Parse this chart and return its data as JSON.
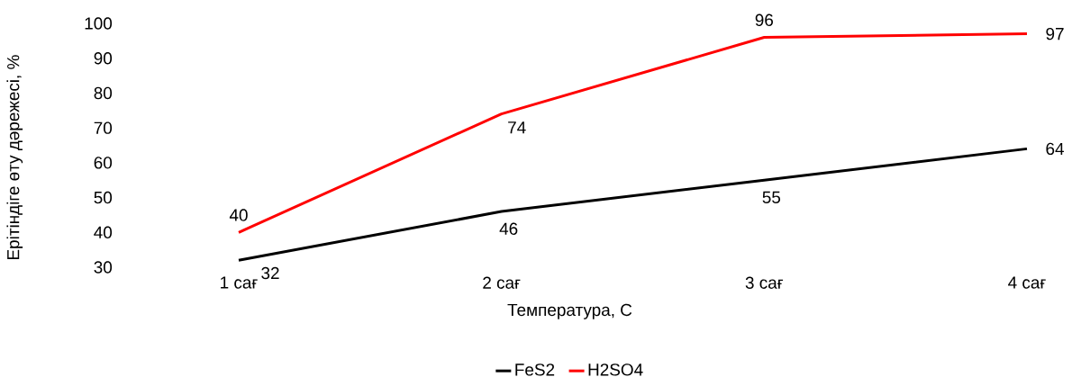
{
  "chart_data": {
    "type": "line",
    "xlabel": "Температура, С",
    "ylabel": "Ерітіндіге өту дәрежесі, %",
    "categories": [
      "1 сағ",
      "2 сағ",
      "3 сағ",
      "4 сағ"
    ],
    "ylim": [
      30,
      100
    ],
    "yticks": [
      30,
      40,
      50,
      60,
      70,
      80,
      90,
      100
    ],
    "series": [
      {
        "name": "FeS2",
        "color": "#000000",
        "values": [
          32,
          46,
          55,
          64
        ]
      },
      {
        "name": "H2SO4",
        "color": "#ff0000",
        "values": [
          40,
          74,
          96,
          97
        ]
      }
    ],
    "data_labels": true,
    "legend": "bottom",
    "grid": false,
    "marker": "none",
    "line_style": "solid"
  }
}
